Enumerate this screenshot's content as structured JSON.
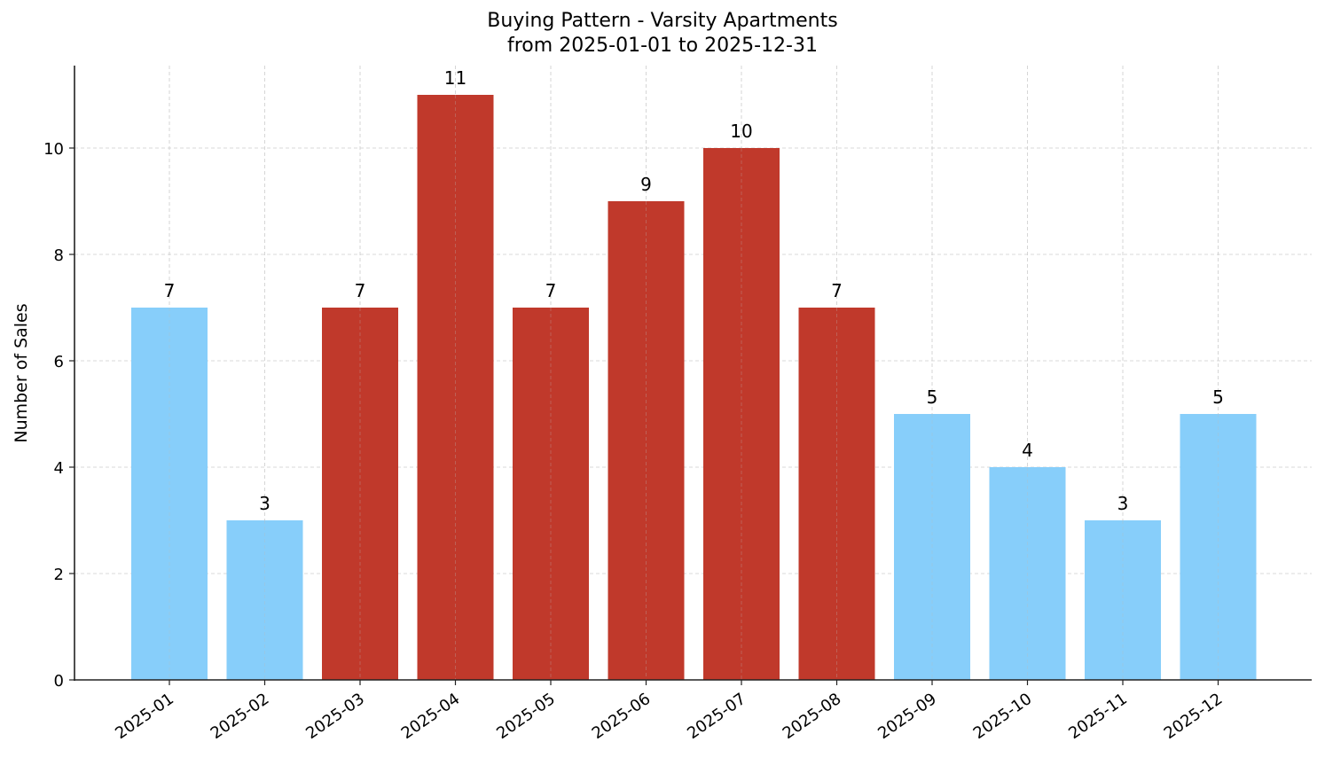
{
  "chart": {
    "title_line1": "Buying Pattern - Varsity Apartments",
    "title_line2": "from 2025-01-01 to 2025-12-31",
    "ylabel": "Number of Sales"
  },
  "colors": {
    "highlight": "#c0392b",
    "normal": "#87cefa",
    "axis": "#222222",
    "grid": "#cccccc"
  },
  "chart_data": {
    "type": "bar",
    "title": "Buying Pattern - Varsity Apartments\nfrom 2025-01-01 to 2025-12-31",
    "xlabel": "",
    "ylabel": "Number of Sales",
    "categories": [
      "2025-01",
      "2025-02",
      "2025-03",
      "2025-04",
      "2025-05",
      "2025-06",
      "2025-07",
      "2025-08",
      "2025-09",
      "2025-10",
      "2025-11",
      "2025-12"
    ],
    "values": [
      7,
      3,
      7,
      11,
      7,
      9,
      10,
      7,
      5,
      4,
      3,
      5
    ],
    "bar_colors": [
      "#87cefa",
      "#87cefa",
      "#c0392b",
      "#c0392b",
      "#c0392b",
      "#c0392b",
      "#c0392b",
      "#c0392b",
      "#87cefa",
      "#87cefa",
      "#87cefa",
      "#87cefa"
    ],
    "data_labels": [
      "7",
      "3",
      "7",
      "11",
      "7",
      "9",
      "10",
      "7",
      "5",
      "4",
      "3",
      "5"
    ],
    "yticks": [
      0,
      2,
      4,
      6,
      8,
      10
    ],
    "ylim": [
      0,
      11.55
    ],
    "grid": true,
    "grid_style": "dashed",
    "legend": null
  }
}
